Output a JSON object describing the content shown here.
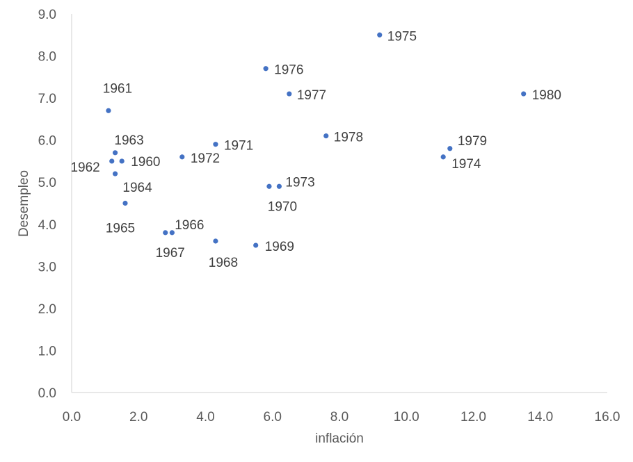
{
  "chart_data": {
    "type": "scatter",
    "xlabel": "inflación",
    "ylabel": "Desempleo",
    "xlim": [
      0,
      16
    ],
    "ylim": [
      0,
      9
    ],
    "xticks": [
      "0.0",
      "2.0",
      "4.0",
      "6.0",
      "8.0",
      "10.0",
      "12.0",
      "14.0",
      "16.0"
    ],
    "yticks": [
      "0.0",
      "1.0",
      "2.0",
      "3.0",
      "4.0",
      "5.0",
      "6.0",
      "7.0",
      "8.0",
      "9.0"
    ],
    "grid": false,
    "marker_color": "#4472C4",
    "points": [
      {
        "label": "1960",
        "x": 1.5,
        "y": 5.5
      },
      {
        "label": "1961",
        "x": 1.1,
        "y": 6.7
      },
      {
        "label": "1962",
        "x": 1.2,
        "y": 5.5
      },
      {
        "label": "1963",
        "x": 1.3,
        "y": 5.7
      },
      {
        "label": "1964",
        "x": 1.3,
        "y": 5.2
      },
      {
        "label": "1965",
        "x": 1.6,
        "y": 4.5
      },
      {
        "label": "1966",
        "x": 3.0,
        "y": 3.8
      },
      {
        "label": "1967",
        "x": 2.8,
        "y": 3.8
      },
      {
        "label": "1968",
        "x": 4.3,
        "y": 3.6
      },
      {
        "label": "1969",
        "x": 5.5,
        "y": 3.5
      },
      {
        "label": "1970",
        "x": 5.9,
        "y": 4.9
      },
      {
        "label": "1971",
        "x": 4.3,
        "y": 5.9
      },
      {
        "label": "1972",
        "x": 3.3,
        "y": 5.6
      },
      {
        "label": "1973",
        "x": 6.2,
        "y": 4.9
      },
      {
        "label": "1974",
        "x": 11.1,
        "y": 5.6
      },
      {
        "label": "1975",
        "x": 9.2,
        "y": 8.5
      },
      {
        "label": "1976",
        "x": 5.8,
        "y": 7.7
      },
      {
        "label": "1977",
        "x": 6.5,
        "y": 7.1
      },
      {
        "label": "1978",
        "x": 7.6,
        "y": 6.1
      },
      {
        "label": "1979",
        "x": 11.3,
        "y": 5.8
      },
      {
        "label": "1980",
        "x": 13.5,
        "y": 7.1
      }
    ]
  }
}
